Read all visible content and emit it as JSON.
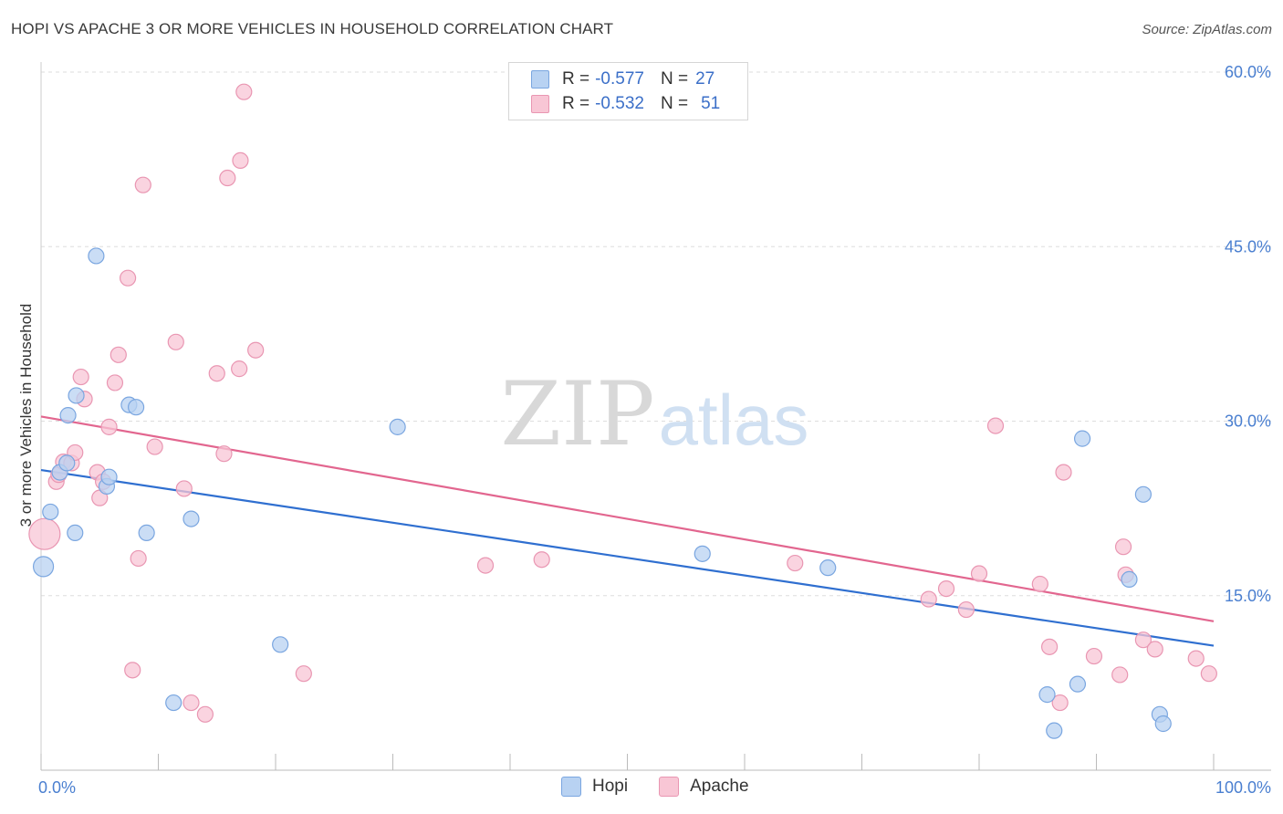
{
  "title": "HOPI VS APACHE 3 OR MORE VEHICLES IN HOUSEHOLD CORRELATION CHART",
  "source": "Source: ZipAtlas.com",
  "watermark": {
    "zip": "ZIP",
    "atlas": "atlas"
  },
  "legend_stats": [
    {
      "series": "Hopi",
      "r_label": "R =",
      "r_value": "-0.577",
      "n_label": "N =",
      "n_value": "27"
    },
    {
      "series": "Apache",
      "r_label": "R =",
      "r_value": "-0.532",
      "n_label": "N =",
      "n_value": "51"
    }
  ],
  "colors": {
    "hopi_fill": "#b8d2f2",
    "hopi_stroke": "#7aa6e0",
    "hopi_line": "#2f6fd0",
    "apache_fill": "#f8c6d5",
    "apache_stroke": "#e996b2",
    "apache_line": "#e2668f",
    "tick_text": "#4a7fd0",
    "grid": "#dddddd"
  },
  "chart_data": {
    "type": "scatter",
    "title": "HOPI VS APACHE 3 OR MORE VEHICLES IN HOUSEHOLD CORRELATION CHART",
    "xlabel": "",
    "ylabel": "3 or more Vehicles in Household",
    "xlim": [
      0,
      100
    ],
    "ylim": [
      0,
      60
    ],
    "x_tick_labels": [
      "0.0%",
      "100.0%"
    ],
    "y_ticks": [
      15,
      30,
      45,
      60
    ],
    "y_tick_labels": [
      "15.0%",
      "30.0%",
      "45.0%",
      "60.0%"
    ],
    "grid": true,
    "legend": [
      "Hopi",
      "Apache"
    ],
    "series": [
      {
        "name": "Hopi",
        "points": [
          [
            0.2,
            17.5
          ],
          [
            0.8,
            22.2
          ],
          [
            1.6,
            25.6
          ],
          [
            2.2,
            26.4
          ],
          [
            2.3,
            30.5
          ],
          [
            2.9,
            20.4
          ],
          [
            3.0,
            32.2
          ],
          [
            4.7,
            44.2
          ],
          [
            5.6,
            24.4
          ],
          [
            5.8,
            25.2
          ],
          [
            7.5,
            31.4
          ],
          [
            8.1,
            31.2
          ],
          [
            9.0,
            20.4
          ],
          [
            11.3,
            5.8
          ],
          [
            12.8,
            21.6
          ],
          [
            20.4,
            10.8
          ],
          [
            30.4,
            29.5
          ],
          [
            56.4,
            18.6
          ],
          [
            67.1,
            17.4
          ],
          [
            85.8,
            6.5
          ],
          [
            86.4,
            3.4
          ],
          [
            88.4,
            7.4
          ],
          [
            88.8,
            28.5
          ],
          [
            92.8,
            16.4
          ],
          [
            94.0,
            23.7
          ],
          [
            95.4,
            4.8
          ],
          [
            95.7,
            4.0
          ]
        ],
        "trend": {
          "x": [
            0,
            100
          ],
          "y": [
            25.8,
            10.7
          ]
        }
      },
      {
        "name": "Apache",
        "points": [
          [
            0.3,
            20.3
          ],
          [
            1.3,
            24.8
          ],
          [
            1.5,
            25.4
          ],
          [
            1.9,
            26.5
          ],
          [
            2.6,
            26.4
          ],
          [
            2.9,
            27.3
          ],
          [
            3.4,
            33.8
          ],
          [
            3.7,
            31.9
          ],
          [
            4.8,
            25.6
          ],
          [
            5.0,
            23.4
          ],
          [
            5.3,
            24.8
          ],
          [
            5.8,
            29.5
          ],
          [
            6.3,
            33.3
          ],
          [
            6.6,
            35.7
          ],
          [
            7.4,
            42.3
          ],
          [
            7.8,
            8.6
          ],
          [
            8.3,
            18.2
          ],
          [
            8.7,
            50.3
          ],
          [
            9.7,
            27.8
          ],
          [
            11.5,
            36.8
          ],
          [
            12.2,
            24.2
          ],
          [
            12.8,
            5.8
          ],
          [
            14.0,
            4.8
          ],
          [
            15.0,
            34.1
          ],
          [
            15.6,
            27.2
          ],
          [
            15.9,
            50.9
          ],
          [
            16.9,
            34.5
          ],
          [
            17.0,
            52.4
          ],
          [
            17.3,
            58.3
          ],
          [
            18.3,
            36.1
          ],
          [
            22.4,
            8.3
          ],
          [
            37.9,
            17.6
          ],
          [
            42.7,
            18.1
          ],
          [
            64.3,
            17.8
          ],
          [
            75.7,
            14.7
          ],
          [
            77.2,
            15.6
          ],
          [
            78.9,
            13.8
          ],
          [
            80.0,
            16.9
          ],
          [
            81.4,
            29.6
          ],
          [
            85.2,
            16.0
          ],
          [
            86.0,
            10.6
          ],
          [
            86.9,
            5.8
          ],
          [
            87.2,
            25.6
          ],
          [
            89.8,
            9.8
          ],
          [
            92.0,
            8.2
          ],
          [
            92.3,
            19.2
          ],
          [
            92.5,
            16.8
          ],
          [
            94.0,
            11.2
          ],
          [
            95.0,
            10.4
          ],
          [
            98.5,
            9.6
          ],
          [
            99.6,
            8.3
          ]
        ],
        "trend": {
          "x": [
            0,
            100
          ],
          "y": [
            30.4,
            12.8
          ]
        }
      }
    ]
  }
}
